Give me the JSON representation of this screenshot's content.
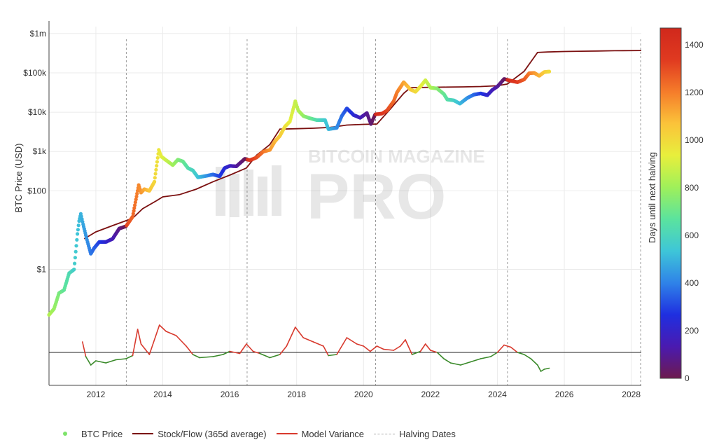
{
  "chart_data": {
    "type": "scatter",
    "watermark": "BITCOIN MAGAZINE PRO",
    "xlim": [
      2010.6,
      2028.3
    ],
    "x_ticks": [
      2012,
      2014,
      2016,
      2018,
      2020,
      2022,
      2024,
      2026,
      2028
    ],
    "y_scale": "log",
    "ylabel": "BTC Price (USD)",
    "y_ticks": [
      {
        "value": 1,
        "label": "$1"
      },
      {
        "value": 100,
        "label": "$100"
      },
      {
        "value": 1000,
        "label": "$1k"
      },
      {
        "value": 10000,
        "label": "$10k"
      },
      {
        "value": 100000,
        "label": "$100k"
      },
      {
        "value": 1000000,
        "label": "$1m"
      }
    ],
    "colorbar": {
      "label": "Days until next halving",
      "range": [
        0,
        1470
      ],
      "ticks": [
        0,
        200,
        400,
        600,
        800,
        1000,
        1200,
        1400
      ],
      "colors": [
        "#6d1a4e",
        "#4a1ab0",
        "#1f2fe0",
        "#2f83e8",
        "#3ec6d8",
        "#5be39e",
        "#9ff05a",
        "#e8ef3c",
        "#fbc33a",
        "#f57c2a",
        "#e03a20",
        "#d0281c"
      ]
    },
    "halving_dates": [
      2012.91,
      2016.52,
      2020.36,
      2024.3,
      2028.28
    ],
    "legend": [
      {
        "key": "price",
        "label": "BTC Price"
      },
      {
        "key": "sf",
        "label": "Stock/Flow (365d average)"
      },
      {
        "key": "mv",
        "label": "Model Variance"
      },
      {
        "key": "halving",
        "label": "Halving Dates"
      }
    ],
    "series": [
      {
        "name": "BTC Price",
        "points": [
          [
            2010.6,
            0.07
          ],
          [
            2010.75,
            0.1
          ],
          [
            2010.9,
            0.25
          ],
          [
            2011.05,
            0.3
          ],
          [
            2011.2,
            0.8
          ],
          [
            2011.35,
            1.0
          ],
          [
            2011.45,
            8
          ],
          [
            2011.5,
            17
          ],
          [
            2011.55,
            26
          ],
          [
            2011.62,
            14
          ],
          [
            2011.75,
            5
          ],
          [
            2011.85,
            2.5
          ],
          [
            2011.95,
            3.5
          ],
          [
            2012.1,
            5
          ],
          [
            2012.3,
            5
          ],
          [
            2012.5,
            6
          ],
          [
            2012.7,
            11
          ],
          [
            2012.9,
            12.5
          ],
          [
            2013.1,
            22
          ],
          [
            2013.28,
            140
          ],
          [
            2013.35,
            90
          ],
          [
            2013.45,
            110
          ],
          [
            2013.6,
            100
          ],
          [
            2013.75,
            170
          ],
          [
            2013.88,
            1100
          ],
          [
            2013.95,
            750
          ],
          [
            2014.1,
            600
          ],
          [
            2014.3,
            450
          ],
          [
            2014.45,
            620
          ],
          [
            2014.6,
            560
          ],
          [
            2014.75,
            380
          ],
          [
            2014.9,
            330
          ],
          [
            2015.05,
            220
          ],
          [
            2015.3,
            240
          ],
          [
            2015.5,
            260
          ],
          [
            2015.7,
            235
          ],
          [
            2015.85,
            380
          ],
          [
            2016.0,
            430
          ],
          [
            2016.2,
            420
          ],
          [
            2016.45,
            650
          ],
          [
            2016.6,
            600
          ],
          [
            2016.8,
            700
          ],
          [
            2017.0,
            990
          ],
          [
            2017.2,
            1100
          ],
          [
            2017.35,
            1800
          ],
          [
            2017.5,
            2500
          ],
          [
            2017.65,
            4300
          ],
          [
            2017.8,
            5800
          ],
          [
            2017.96,
            19000
          ],
          [
            2018.05,
            11000
          ],
          [
            2018.2,
            8000
          ],
          [
            2018.4,
            7000
          ],
          [
            2018.6,
            6300
          ],
          [
            2018.85,
            6300
          ],
          [
            2018.95,
            3700
          ],
          [
            2019.2,
            4000
          ],
          [
            2019.35,
            8000
          ],
          [
            2019.5,
            12500
          ],
          [
            2019.7,
            8500
          ],
          [
            2019.9,
            7200
          ],
          [
            2020.1,
            9500
          ],
          [
            2020.22,
            5000
          ],
          [
            2020.35,
            8800
          ],
          [
            2020.55,
            9200
          ],
          [
            2020.7,
            11000
          ],
          [
            2020.9,
            19000
          ],
          [
            2021.0,
            32000
          ],
          [
            2021.2,
            58000
          ],
          [
            2021.4,
            38000
          ],
          [
            2021.55,
            33000
          ],
          [
            2021.7,
            45000
          ],
          [
            2021.85,
            65000
          ],
          [
            2022.0,
            42000
          ],
          [
            2022.2,
            40000
          ],
          [
            2022.4,
            29000
          ],
          [
            2022.5,
            21000
          ],
          [
            2022.7,
            20000
          ],
          [
            2022.88,
            16500
          ],
          [
            2023.1,
            23000
          ],
          [
            2023.3,
            28000
          ],
          [
            2023.5,
            30000
          ],
          [
            2023.7,
            27000
          ],
          [
            2023.85,
            37000
          ],
          [
            2024.0,
            45000
          ],
          [
            2024.2,
            70000
          ],
          [
            2024.4,
            63000
          ],
          [
            2024.6,
            58000
          ],
          [
            2024.8,
            68000
          ],
          [
            2024.95,
            98000
          ],
          [
            2025.1,
            100000
          ],
          [
            2025.25,
            84000
          ],
          [
            2025.4,
            105000
          ],
          [
            2025.55,
            108000
          ]
        ]
      },
      {
        "name": "Stock/Flow (365d average)",
        "points": [
          [
            2011.65,
            6
          ],
          [
            2012.0,
            9
          ],
          [
            2012.5,
            13
          ],
          [
            2012.95,
            18
          ],
          [
            2013.1,
            20
          ],
          [
            2013.4,
            35
          ],
          [
            2013.8,
            55
          ],
          [
            2014.0,
            70
          ],
          [
            2014.5,
            80
          ],
          [
            2015.0,
            110
          ],
          [
            2015.5,
            170
          ],
          [
            2016.0,
            250
          ],
          [
            2016.5,
            380
          ],
          [
            2016.8,
            800
          ],
          [
            2017.2,
            1500
          ],
          [
            2017.5,
            3700
          ],
          [
            2018.0,
            3800
          ],
          [
            2018.5,
            3900
          ],
          [
            2019.0,
            4100
          ],
          [
            2019.5,
            4700
          ],
          [
            2020.0,
            4900
          ],
          [
            2020.4,
            5000
          ],
          [
            2020.8,
            12000
          ],
          [
            2021.2,
            30000
          ],
          [
            2021.4,
            42000
          ],
          [
            2022.0,
            43000
          ],
          [
            2022.5,
            43500
          ],
          [
            2023.0,
            44000
          ],
          [
            2023.5,
            45000
          ],
          [
            2024.0,
            47000
          ],
          [
            2024.3,
            52000
          ],
          [
            2024.8,
            110000
          ],
          [
            2025.2,
            330000
          ],
          [
            2025.5,
            340000
          ],
          [
            2026.0,
            350000
          ],
          [
            2026.5,
            355000
          ],
          [
            2027.0,
            360000
          ],
          [
            2027.5,
            365000
          ],
          [
            2028.3,
            370000
          ]
        ]
      },
      {
        "name": "Model Variance",
        "baseline": 0,
        "points": [
          [
            2011.6,
            0.5
          ],
          [
            2011.7,
            -0.2
          ],
          [
            2011.85,
            -0.6
          ],
          [
            2012.0,
            -0.4
          ],
          [
            2012.3,
            -0.5
          ],
          [
            2012.6,
            -0.35
          ],
          [
            2012.9,
            -0.3
          ],
          [
            2013.1,
            -0.15
          ],
          [
            2013.25,
            1.1
          ],
          [
            2013.35,
            0.4
          ],
          [
            2013.6,
            -0.1
          ],
          [
            2013.9,
            1.3
          ],
          [
            2014.1,
            1.0
          ],
          [
            2014.4,
            0.8
          ],
          [
            2014.7,
            0.3
          ],
          [
            2014.9,
            -0.1
          ],
          [
            2015.1,
            -0.25
          ],
          [
            2015.5,
            -0.2
          ],
          [
            2015.8,
            -0.1
          ],
          [
            2016.0,
            0.05
          ],
          [
            2016.3,
            -0.05
          ],
          [
            2016.5,
            0.4
          ],
          [
            2016.7,
            0.05
          ],
          [
            2016.9,
            -0.05
          ],
          [
            2017.2,
            -0.25
          ],
          [
            2017.5,
            -0.1
          ],
          [
            2017.7,
            0.3
          ],
          [
            2017.96,
            1.2
          ],
          [
            2018.2,
            0.7
          ],
          [
            2018.5,
            0.5
          ],
          [
            2018.8,
            0.3
          ],
          [
            2018.95,
            -0.15
          ],
          [
            2019.2,
            -0.1
          ],
          [
            2019.5,
            0.7
          ],
          [
            2019.8,
            0.4
          ],
          [
            2020.0,
            0.3
          ],
          [
            2020.2,
            0.05
          ],
          [
            2020.4,
            0.3
          ],
          [
            2020.6,
            0.15
          ],
          [
            2020.9,
            0.1
          ],
          [
            2021.1,
            0.3
          ],
          [
            2021.25,
            0.6
          ],
          [
            2021.45,
            -0.1
          ],
          [
            2021.7,
            0.05
          ],
          [
            2021.85,
            0.4
          ],
          [
            2022.0,
            0.1
          ],
          [
            2022.2,
            0.0
          ],
          [
            2022.4,
            -0.3
          ],
          [
            2022.6,
            -0.5
          ],
          [
            2022.9,
            -0.6
          ],
          [
            2023.2,
            -0.45
          ],
          [
            2023.5,
            -0.3
          ],
          [
            2023.8,
            -0.2
          ],
          [
            2024.0,
            0.0
          ],
          [
            2024.2,
            0.35
          ],
          [
            2024.4,
            0.25
          ],
          [
            2024.6,
            0.0
          ],
          [
            2024.8,
            -0.1
          ],
          [
            2025.0,
            -0.3
          ],
          [
            2025.2,
            -0.6
          ],
          [
            2025.3,
            -0.9
          ],
          [
            2025.4,
            -0.8
          ],
          [
            2025.55,
            -0.75
          ]
        ]
      }
    ]
  }
}
